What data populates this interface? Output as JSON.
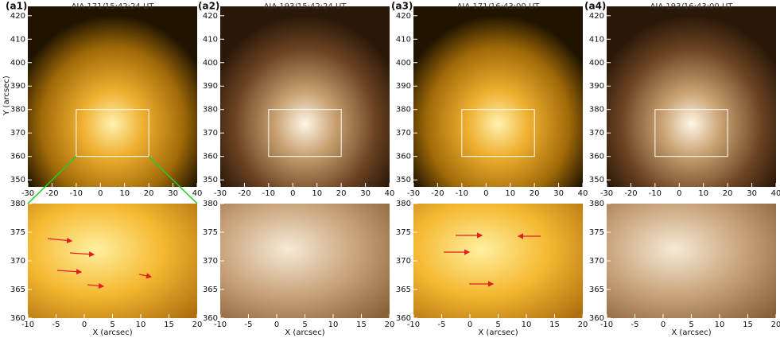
{
  "panels": [
    {
      "label": "(a1)",
      "title": "AIA 171/15:42:24 UT"
    },
    {
      "label": "(a2)",
      "title": "AIA 193/15:42:24 UT"
    },
    {
      "label": "(a3)",
      "title": "AIA 171/16:43:00 UT"
    },
    {
      "label": "(a4)",
      "title": "AIA 193/16:43:00 UT"
    }
  ],
  "top_axes": {
    "xlim": [
      -30,
      40
    ],
    "ylim": [
      347,
      424
    ],
    "xticks": [
      -30,
      -20,
      -10,
      0,
      10,
      20,
      30,
      40
    ],
    "yticks": [
      350,
      360,
      370,
      380,
      390,
      400,
      410,
      420
    ],
    "ylabel": "Y (arcsec)"
  },
  "bottom_axes": {
    "xlim": [
      -10,
      20
    ],
    "ylim": [
      360,
      380
    ],
    "xticks": [
      -10,
      -5,
      0,
      5,
      10,
      15,
      20
    ],
    "yticks": [
      360,
      365,
      370,
      375,
      380
    ],
    "xlabel": "X (arcsec)"
  }
}
